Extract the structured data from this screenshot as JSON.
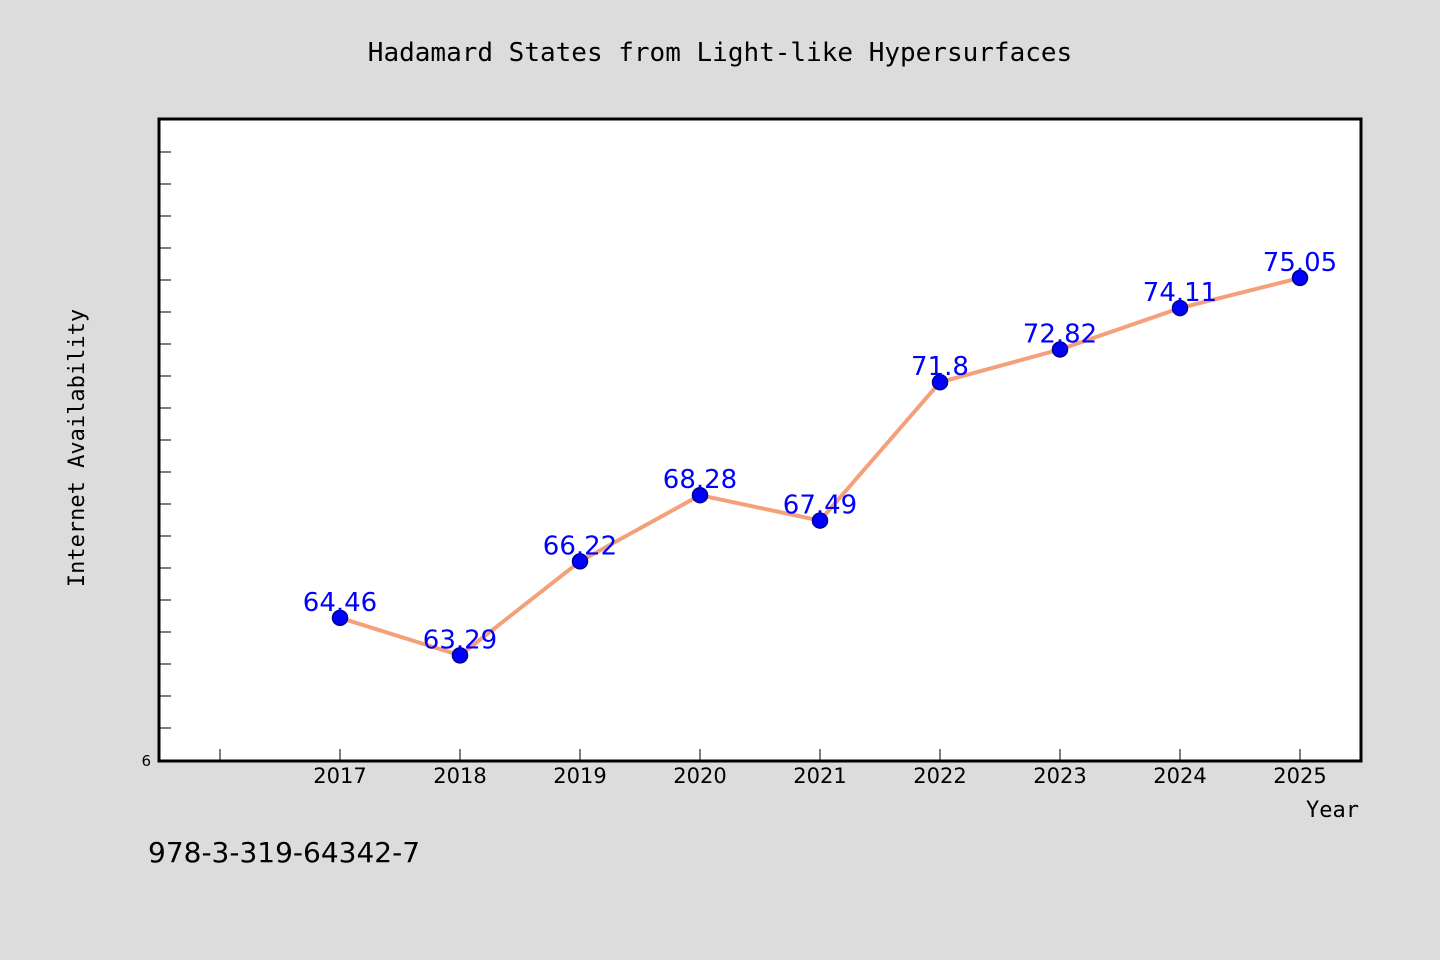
{
  "chart_data": {
    "type": "line",
    "title": "Hadamard States from Light-like Hypersurfaces",
    "xlabel": "Year",
    "ylabel": "Internet Availability",
    "categories": [
      "2017",
      "2018",
      "2019",
      "2020",
      "2021",
      "2022",
      "2023",
      "2024",
      "2025"
    ],
    "series": [
      {
        "values": [
          64.46,
          63.29,
          66.22,
          68.28,
          67.49,
          71.8,
          72.82,
          74.11,
          75.05
        ],
        "data_labels": [
          "64.46",
          "63.29",
          "66.22",
          "68.28",
          "67.49",
          "71.8",
          "72.82",
          "74.11",
          "75.05"
        ]
      }
    ],
    "ylim": [
      60,
      80
    ],
    "y_tick_labels": [
      "6"
    ],
    "grid": false,
    "colors": {
      "line": "#f4a07a",
      "marker": "#0000ff",
      "marker_edge": "#00008b",
      "data_label": "#0000ff",
      "plot_background": "#ffffff",
      "page_background": "#dcdcdc",
      "frame": "#000000"
    }
  },
  "footer_text": "978-3-319-64342-7"
}
